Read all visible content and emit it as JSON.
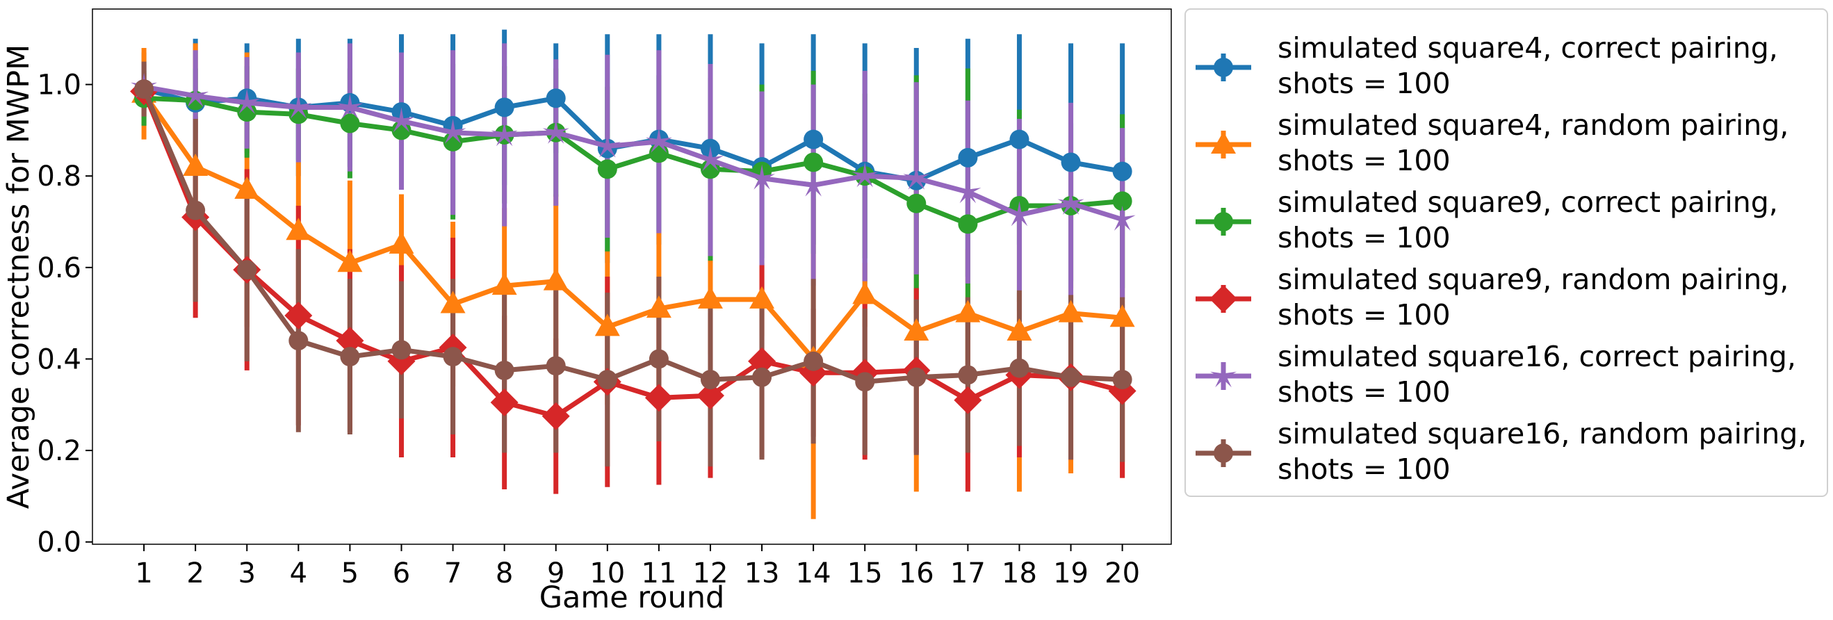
{
  "chart_data": {
    "type": "line",
    "title": "",
    "xlabel": "Game round",
    "ylabel": "Average correctness for MWPM",
    "x": [
      1,
      2,
      3,
      4,
      5,
      6,
      7,
      8,
      9,
      10,
      11,
      12,
      13,
      14,
      15,
      16,
      17,
      18,
      19,
      20
    ],
    "xlim": [
      0.0,
      20.95
    ],
    "ylim": [
      -0.005,
      1.165
    ],
    "yticks": [
      0.0,
      0.2,
      0.4,
      0.6,
      0.8,
      1.0
    ],
    "ytick_labels": [
      "0.0",
      "0.2",
      "0.4",
      "0.6",
      "0.8",
      "1.0"
    ],
    "grid": false,
    "legend_position": "outside-right",
    "series": [
      {
        "name": [
          "simulated square4, correct pairing,",
          "shots = 100"
        ],
        "color": "#1f77b4",
        "marker": "circle",
        "values": [
          0.99,
          0.96,
          0.97,
          0.95,
          0.96,
          0.94,
          0.91,
          0.95,
          0.97,
          0.86,
          0.88,
          0.86,
          0.82,
          0.88,
          0.81,
          0.79,
          0.84,
          0.88,
          0.83,
          0.81
        ],
        "errors": [
          0.08,
          0.14,
          0.12,
          0.15,
          0.14,
          0.17,
          0.2,
          0.17,
          0.12,
          0.25,
          0.23,
          0.25,
          0.27,
          0.23,
          0.28,
          0.29,
          0.26,
          0.23,
          0.26,
          0.28
        ]
      },
      {
        "name": [
          "simulated square4, random pairing,",
          "shots = 100"
        ],
        "color": "#ff7f0e",
        "marker": "triangle",
        "values": [
          0.98,
          0.82,
          0.77,
          0.68,
          0.61,
          0.65,
          0.52,
          0.56,
          0.57,
          0.47,
          0.51,
          0.53,
          0.53,
          0.4,
          0.54,
          0.46,
          0.5,
          0.46,
          0.5,
          0.49
        ],
        "errors": [
          0.1,
          0.27,
          0.3,
          0.15,
          0.18,
          0.11,
          0.18,
          0.17,
          0.19,
          0.17,
          0.17,
          0.12,
          0.08,
          0.35,
          0.07,
          0.35,
          0.14,
          0.35,
          0.35,
          0.35
        ]
      },
      {
        "name": [
          "simulated square9, correct pairing,",
          "shots = 100"
        ],
        "color": "#2ca02c",
        "marker": "circle",
        "values": [
          0.97,
          0.965,
          0.94,
          0.935,
          0.915,
          0.9,
          0.875,
          0.89,
          0.895,
          0.815,
          0.85,
          0.815,
          0.81,
          0.83,
          0.8,
          0.74,
          0.695,
          0.735,
          0.735,
          0.745
        ],
        "errors": [
          0.06,
          0.07,
          0.1,
          0.1,
          0.12,
          0.12,
          0.17,
          0.15,
          0.14,
          0.18,
          0.17,
          0.2,
          0.19,
          0.2,
          0.18,
          0.28,
          0.34,
          0.21,
          0.18,
          0.19
        ]
      },
      {
        "name": [
          "simulated square9, random pairing,",
          "shots = 100"
        ],
        "color": "#d62728",
        "marker": "diamond",
        "values": [
          0.985,
          0.71,
          0.595,
          0.495,
          0.44,
          0.395,
          0.425,
          0.305,
          0.275,
          0.35,
          0.315,
          0.32,
          0.395,
          0.37,
          0.37,
          0.375,
          0.31,
          0.365,
          0.36,
          0.33
        ],
        "errors": [
          0.04,
          0.22,
          0.22,
          0.24,
          0.2,
          0.21,
          0.24,
          0.19,
          0.17,
          0.23,
          0.19,
          0.18,
          0.21,
          0.14,
          0.19,
          0.18,
          0.2,
          0.18,
          0.18,
          0.19
        ]
      },
      {
        "name": [
          "simulated square16, correct pairing,",
          "shots = 100"
        ],
        "color": "#9467bd",
        "marker": "star",
        "values": [
          0.995,
          0.975,
          0.96,
          0.95,
          0.95,
          0.92,
          0.895,
          0.89,
          0.895,
          0.865,
          0.875,
          0.835,
          0.795,
          0.78,
          0.8,
          0.795,
          0.765,
          0.715,
          0.74,
          0.705
        ],
        "errors": [
          0.05,
          0.1,
          0.1,
          0.12,
          0.14,
          0.15,
          0.18,
          0.2,
          0.16,
          0.2,
          0.2,
          0.21,
          0.19,
          0.22,
          0.23,
          0.21,
          0.2,
          0.21,
          0.22,
          0.2
        ]
      },
      {
        "name": [
          "simulated square16, random pairing,",
          "shots = 100"
        ],
        "color": "#8c564b",
        "marker": "circle",
        "values": [
          0.99,
          0.725,
          0.595,
          0.44,
          0.405,
          0.42,
          0.405,
          0.375,
          0.385,
          0.355,
          0.4,
          0.355,
          0.36,
          0.395,
          0.35,
          0.36,
          0.365,
          0.38,
          0.36,
          0.355
        ],
        "errors": [
          0.06,
          0.2,
          0.2,
          0.2,
          0.17,
          0.15,
          0.17,
          0.18,
          0.19,
          0.19,
          0.18,
          0.19,
          0.18,
          0.18,
          0.16,
          0.17,
          0.17,
          0.17,
          0.18,
          0.18
        ]
      }
    ]
  }
}
